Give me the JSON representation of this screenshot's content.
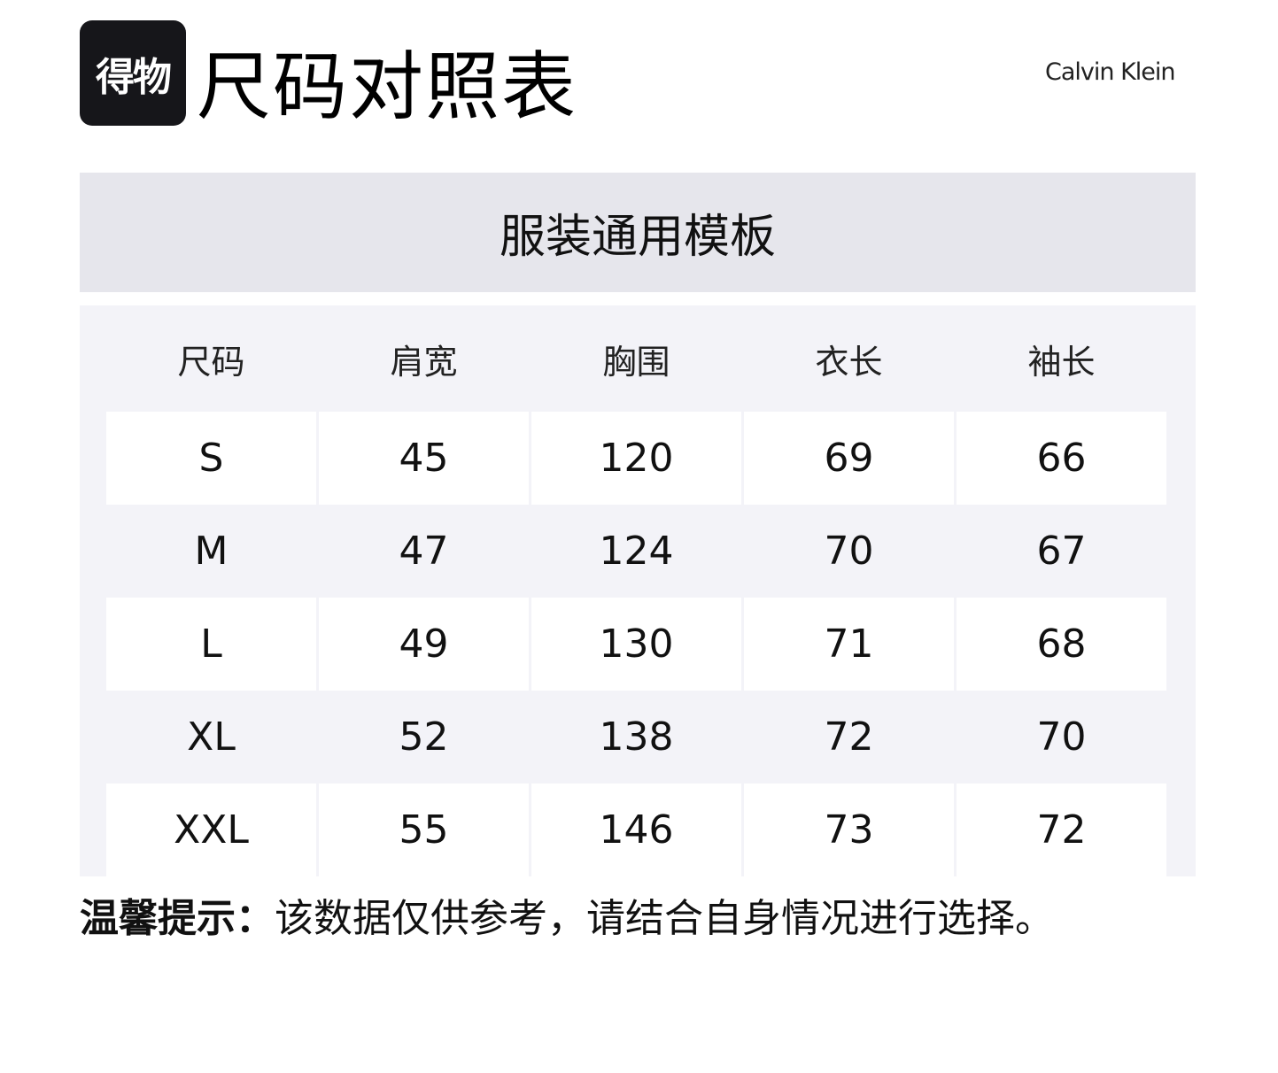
{
  "logo": {
    "text": "得物"
  },
  "title": "尺码对照表",
  "brand": "Calvin Klein",
  "banner": "服装通用模板",
  "table": {
    "headers": [
      "尺码",
      "肩宽",
      "胸围",
      "衣长",
      "袖长"
    ],
    "rows": [
      [
        "S",
        "45",
        "120",
        "69",
        "66"
      ],
      [
        "M",
        "47",
        "124",
        "70",
        "67"
      ],
      [
        "L",
        "49",
        "130",
        "71",
        "68"
      ],
      [
        "XL",
        "52",
        "138",
        "72",
        "70"
      ],
      [
        "XXL",
        "55",
        "146",
        "73",
        "72"
      ]
    ]
  },
  "footer": {
    "label": "温馨提示：",
    "text": "该数据仅供参考，请结合自身情况进行选择。"
  }
}
